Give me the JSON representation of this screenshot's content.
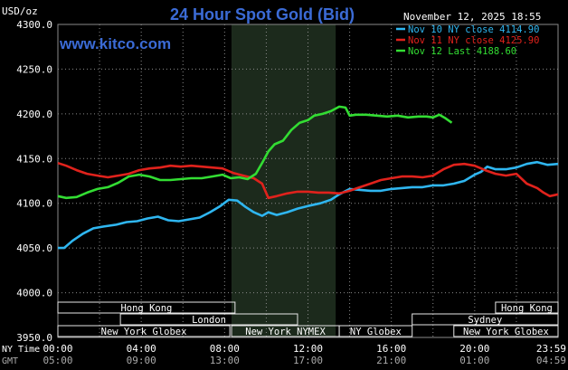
{
  "header": {
    "units": "USD/oz",
    "title": "24 Hour Spot Gold (Bid)",
    "timestamp": "November 12, 2025 18:55",
    "website": "www.kitco.com"
  },
  "colors": {
    "background": "#000000",
    "title": "#3b6bd6",
    "website": "#3b6bd6",
    "grid": "#888888",
    "axis_text": "#ffffff",
    "nymex_shade": "#1c2a1c",
    "session_box": "#e6e6e6"
  },
  "sessions": [
    {
      "label": "Hong Kong",
      "row": 0,
      "start": "00:00",
      "end": "08:30"
    },
    {
      "label": "Hong Kong",
      "row": 0,
      "start": "21:00",
      "end": "24:59"
    },
    {
      "label": "London",
      "row": 1,
      "start": "03:00",
      "end": "11:30"
    },
    {
      "label": "Sydney",
      "row": 1,
      "start": "17:00",
      "end": "24:59"
    },
    {
      "label": "New York Globex",
      "row": 2,
      "start": "00:00",
      "end": "08:15"
    },
    {
      "label": "New York NYMEX",
      "row": 2,
      "start": "08:20",
      "end": "13:30"
    },
    {
      "label": "NY Globex",
      "row": 2,
      "start": "13:30",
      "end": "17:00"
    },
    {
      "label": "New York Globex",
      "row": 2,
      "start": "19:00",
      "end": "24:59"
    }
  ],
  "time_axis": {
    "ny_label": "NY Time",
    "gmt_label": "GMT",
    "ny_ticks": [
      "00:00",
      "04:00",
      "08:00",
      "12:00",
      "16:00",
      "20:00",
      "23:59"
    ],
    "gmt_ticks": [
      "05:00",
      "09:00",
      "13:00",
      "17:00",
      "21:00",
      "01:00",
      "04:59"
    ]
  },
  "chart_data": {
    "type": "line",
    "title": "24 Hour Spot Gold (Bid)",
    "ylabel": "USD/oz",
    "xlabel": "NY Time",
    "xlim_hours": [
      0,
      24
    ],
    "ylim": [
      3950,
      4300
    ],
    "yticks": [
      "3950.0",
      "4000.0",
      "4050.0",
      "4100.0",
      "4150.0",
      "4200.0",
      "4250.0",
      "4300.0"
    ],
    "grid": true,
    "legend_position": "top-right",
    "nymex_session_hours": [
      8.33,
      13.33
    ],
    "series": [
      {
        "name": "Nov 10 NY close",
        "value_label": "4114.90",
        "color": "#2fb6f0",
        "points": [
          [
            0.0,
            4050
          ],
          [
            0.3,
            4050
          ],
          [
            0.7,
            4058
          ],
          [
            1.2,
            4066
          ],
          [
            1.7,
            4072
          ],
          [
            2.2,
            4074
          ],
          [
            2.8,
            4076
          ],
          [
            3.3,
            4079
          ],
          [
            3.8,
            4080
          ],
          [
            4.3,
            4083
          ],
          [
            4.8,
            4085
          ],
          [
            5.3,
            4081
          ],
          [
            5.8,
            4080
          ],
          [
            6.3,
            4082
          ],
          [
            6.8,
            4084
          ],
          [
            7.3,
            4090
          ],
          [
            7.8,
            4097
          ],
          [
            8.2,
            4104
          ],
          [
            8.6,
            4103
          ],
          [
            9.0,
            4096
          ],
          [
            9.4,
            4090
          ],
          [
            9.8,
            4086
          ],
          [
            10.1,
            4090
          ],
          [
            10.5,
            4087
          ],
          [
            11.0,
            4090
          ],
          [
            11.5,
            4094
          ],
          [
            12.0,
            4097
          ],
          [
            12.6,
            4100
          ],
          [
            13.1,
            4104
          ],
          [
            13.5,
            4110
          ],
          [
            14.0,
            4116
          ],
          [
            14.5,
            4115
          ],
          [
            15.0,
            4114
          ],
          [
            15.5,
            4114
          ],
          [
            16.0,
            4116
          ],
          [
            16.5,
            4117
          ],
          [
            17.0,
            4118
          ],
          [
            17.5,
            4118
          ],
          [
            18.0,
            4120
          ],
          [
            18.5,
            4120
          ],
          [
            19.0,
            4122
          ],
          [
            19.5,
            4125
          ],
          [
            20.0,
            4132
          ],
          [
            20.3,
            4135
          ],
          [
            20.6,
            4141
          ],
          [
            21.0,
            4138
          ],
          [
            21.5,
            4138
          ],
          [
            22.0,
            4140
          ],
          [
            22.5,
            4144
          ],
          [
            23.0,
            4146
          ],
          [
            23.5,
            4143
          ],
          [
            24.0,
            4144
          ]
        ]
      },
      {
        "name": "Nov 11 NY close",
        "value_label": "4125.90",
        "color": "#e0221c",
        "points": [
          [
            0.0,
            4145
          ],
          [
            0.4,
            4142
          ],
          [
            0.9,
            4137
          ],
          [
            1.4,
            4133
          ],
          [
            1.9,
            4131
          ],
          [
            2.4,
            4129
          ],
          [
            2.9,
            4131
          ],
          [
            3.4,
            4133
          ],
          [
            3.9,
            4137
          ],
          [
            4.4,
            4139
          ],
          [
            4.9,
            4140
          ],
          [
            5.4,
            4142
          ],
          [
            5.9,
            4141
          ],
          [
            6.4,
            4142
          ],
          [
            6.9,
            4141
          ],
          [
            7.4,
            4140
          ],
          [
            7.9,
            4139
          ],
          [
            8.4,
            4134
          ],
          [
            8.9,
            4131
          ],
          [
            9.4,
            4128
          ],
          [
            9.8,
            4122
          ],
          [
            10.1,
            4106
          ],
          [
            10.5,
            4108
          ],
          [
            11.0,
            4111
          ],
          [
            11.5,
            4113
          ],
          [
            12.0,
            4113
          ],
          [
            12.5,
            4112
          ],
          [
            13.0,
            4112
          ],
          [
            13.5,
            4111
          ],
          [
            14.0,
            4114
          ],
          [
            14.5,
            4118
          ],
          [
            15.0,
            4122
          ],
          [
            15.5,
            4126
          ],
          [
            16.0,
            4128
          ],
          [
            16.5,
            4130
          ],
          [
            17.0,
            4130
          ],
          [
            17.5,
            4129
          ],
          [
            18.0,
            4131
          ],
          [
            18.5,
            4138
          ],
          [
            19.0,
            4143
          ],
          [
            19.5,
            4144
          ],
          [
            20.0,
            4142
          ],
          [
            20.5,
            4137
          ],
          [
            21.0,
            4133
          ],
          [
            21.5,
            4131
          ],
          [
            22.0,
            4133
          ],
          [
            22.5,
            4122
          ],
          [
            23.0,
            4117
          ],
          [
            23.3,
            4112
          ],
          [
            23.6,
            4108
          ],
          [
            24.0,
            4110
          ]
        ]
      },
      {
        "name": "Nov 12 Last",
        "value_label": "4188.60",
        "color": "#33dd33",
        "points": [
          [
            0.0,
            4108
          ],
          [
            0.4,
            4106
          ],
          [
            0.9,
            4107
          ],
          [
            1.4,
            4112
          ],
          [
            1.9,
            4116
          ],
          [
            2.4,
            4118
          ],
          [
            2.9,
            4123
          ],
          [
            3.4,
            4130
          ],
          [
            3.9,
            4132
          ],
          [
            4.4,
            4130
          ],
          [
            4.9,
            4126
          ],
          [
            5.4,
            4126
          ],
          [
            5.9,
            4127
          ],
          [
            6.4,
            4128
          ],
          [
            6.9,
            4128
          ],
          [
            7.4,
            4130
          ],
          [
            7.9,
            4132
          ],
          [
            8.3,
            4128
          ],
          [
            8.7,
            4129
          ],
          [
            9.1,
            4127
          ],
          [
            9.5,
            4133
          ],
          [
            9.8,
            4145
          ],
          [
            10.1,
            4158
          ],
          [
            10.4,
            4166
          ],
          [
            10.8,
            4170
          ],
          [
            11.2,
            4182
          ],
          [
            11.6,
            4190
          ],
          [
            12.0,
            4193
          ],
          [
            12.3,
            4198
          ],
          [
            12.7,
            4200
          ],
          [
            13.1,
            4203
          ],
          [
            13.5,
            4208
          ],
          [
            13.8,
            4207
          ],
          [
            14.0,
            4198
          ],
          [
            14.3,
            4199
          ],
          [
            14.8,
            4199
          ],
          [
            15.3,
            4198
          ],
          [
            15.8,
            4197
          ],
          [
            16.3,
            4198
          ],
          [
            16.8,
            4196
          ],
          [
            17.3,
            4197
          ],
          [
            17.7,
            4197
          ],
          [
            18.0,
            4196
          ],
          [
            18.3,
            4199
          ],
          [
            18.6,
            4195
          ],
          [
            18.9,
            4190
          ]
        ]
      }
    ]
  }
}
